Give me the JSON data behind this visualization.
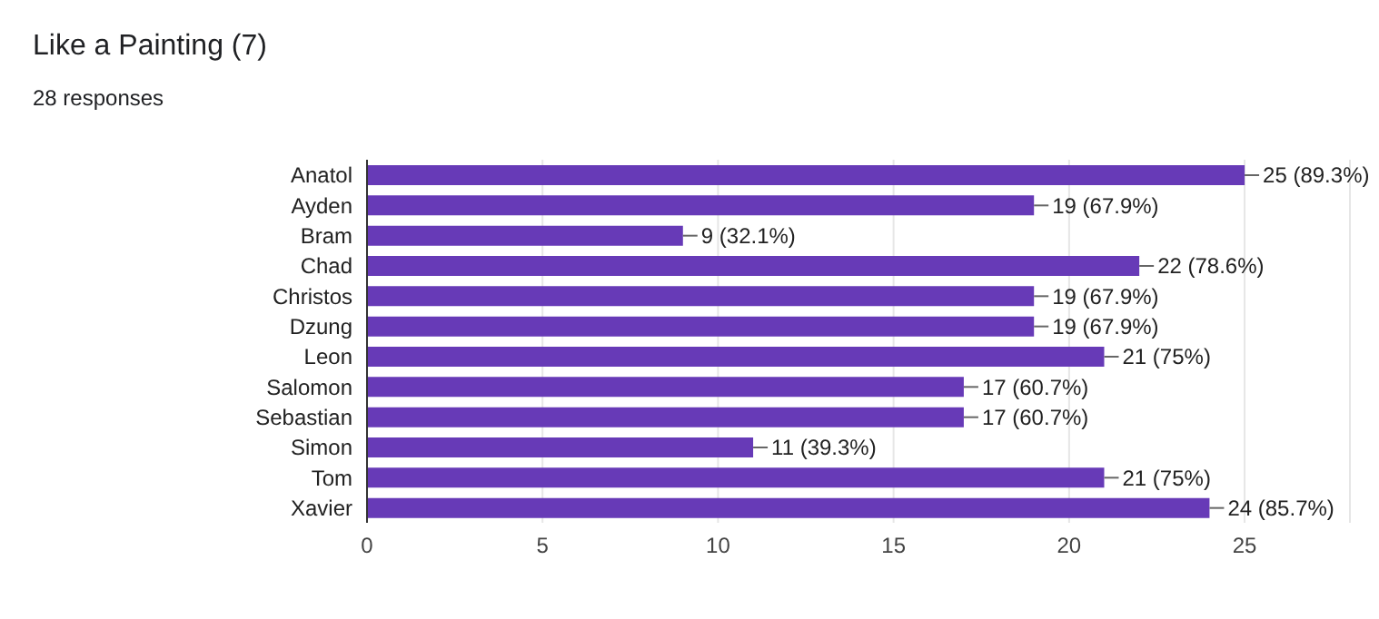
{
  "chart_data": {
    "type": "bar",
    "orientation": "horizontal",
    "title": "Like a Painting (7)",
    "subtitle": "28 responses",
    "categories": [
      "Anatol",
      "Ayden",
      "Bram",
      "Chad",
      "Christos",
      "Dzung",
      "Leon",
      "Salomon",
      "Sebastian",
      "Simon",
      "Tom",
      "Xavier"
    ],
    "values": [
      25,
      19,
      9,
      22,
      19,
      19,
      21,
      17,
      17,
      11,
      21,
      24
    ],
    "value_labels": [
      "25 (89.3%)",
      "19 (67.9%)",
      "9 (32.1%)",
      "22 (78.6%)",
      "19 (67.9%)",
      "19 (67.9%)",
      "21 (75%)",
      "17 (60.7%)",
      "17 (60.7%)",
      "11 (39.3%)",
      "21 (75%)",
      "24 (85.7%)"
    ],
    "color": "#673ab7",
    "xlim": [
      0,
      28
    ],
    "xticks": [
      0,
      5,
      10,
      15,
      20,
      25
    ],
    "grid": "x",
    "legend": false
  }
}
